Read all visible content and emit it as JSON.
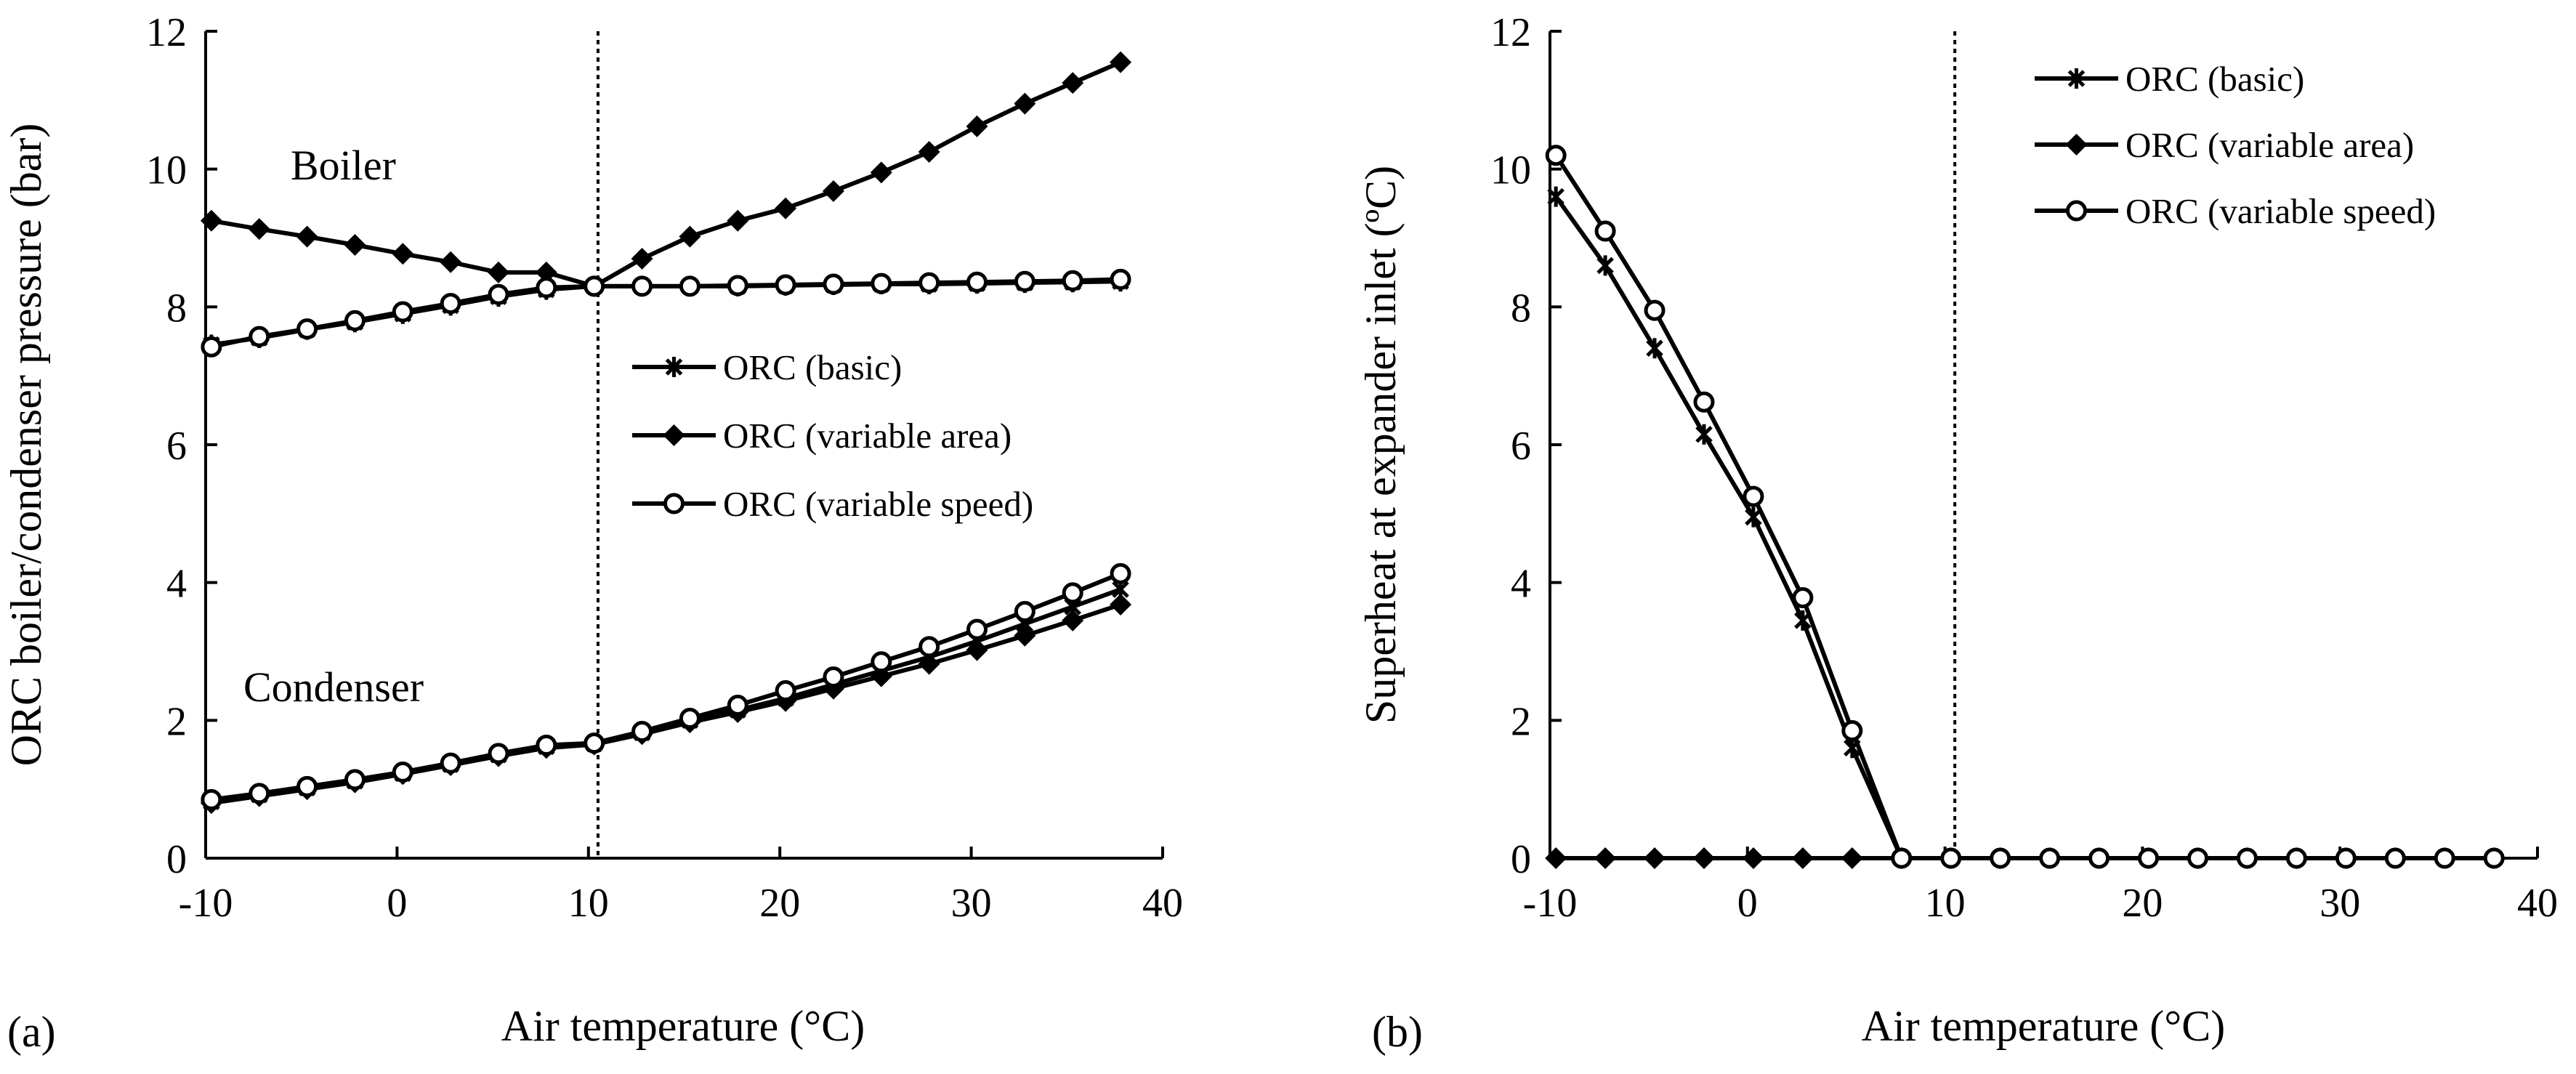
{
  "chart_data": [
    {
      "type": "line",
      "panel_label": "(a)",
      "xlabel": "Air temperature (°C)",
      "ylabel": "ORC boiler/condenser pressure (bar)",
      "xlim": [
        -10,
        40
      ],
      "ylim": [
        0,
        12
      ],
      "xticks": [
        "-10",
        "0",
        "10",
        "20",
        "30",
        "40"
      ],
      "yticks": [
        "0",
        "2",
        "4",
        "6",
        "8",
        "10",
        "12"
      ],
      "vline_x": 10.5,
      "legend_position": "center-right",
      "annotations": [
        "Boiler",
        "Condenser"
      ],
      "x": [
        -9.7,
        -7.2,
        -4.7,
        -2.2,
        0.3,
        2.8,
        5.3,
        7.8,
        10.3,
        12.8,
        15.3,
        17.8,
        20.3,
        22.8,
        25.3,
        27.8,
        30.3,
        32.8,
        35.3,
        37.8
      ],
      "series": [
        {
          "name": "ORC (basic)",
          "group": "boiler",
          "marker": "asterisk",
          "values": [
            7.45,
            7.55,
            7.67,
            7.78,
            7.9,
            8.02,
            8.15,
            8.25,
            8.3,
            8.3,
            8.3,
            8.3,
            8.31,
            8.32,
            8.33,
            8.33,
            8.34,
            8.35,
            8.36,
            8.37
          ]
        },
        {
          "name": "ORC (variable area)",
          "group": "boiler",
          "marker": "diamond",
          "values": [
            9.25,
            9.13,
            9.02,
            8.9,
            8.77,
            8.65,
            8.5,
            8.5,
            8.3,
            8.7,
            9.02,
            9.25,
            9.43,
            9.68,
            9.95,
            10.25,
            10.62,
            10.95,
            11.25,
            11.55
          ]
        },
        {
          "name": "ORC (variable speed)",
          "group": "boiler",
          "marker": "circle",
          "values": [
            7.42,
            7.57,
            7.68,
            7.8,
            7.93,
            8.05,
            8.18,
            8.28,
            8.3,
            8.3,
            8.3,
            8.31,
            8.32,
            8.33,
            8.34,
            8.35,
            8.36,
            8.37,
            8.38,
            8.4
          ]
        },
        {
          "name": "ORC (basic)",
          "group": "condenser",
          "marker": "asterisk",
          "values": [
            0.82,
            0.92,
            1.02,
            1.12,
            1.23,
            1.36,
            1.5,
            1.62,
            1.66,
            1.82,
            2.0,
            2.15,
            2.32,
            2.52,
            2.72,
            2.92,
            3.15,
            3.4,
            3.65,
            3.9
          ]
        },
        {
          "name": "ORC (variable area)",
          "group": "condenser",
          "marker": "diamond",
          "values": [
            0.8,
            0.9,
            1.0,
            1.1,
            1.22,
            1.35,
            1.48,
            1.6,
            1.65,
            1.8,
            1.97,
            2.12,
            2.28,
            2.46,
            2.64,
            2.82,
            3.02,
            3.23,
            3.45,
            3.68
          ]
        },
        {
          "name": "ORC (variable speed)",
          "group": "condenser",
          "marker": "circle",
          "values": [
            0.85,
            0.94,
            1.04,
            1.14,
            1.25,
            1.38,
            1.52,
            1.64,
            1.67,
            1.84,
            2.03,
            2.22,
            2.43,
            2.63,
            2.85,
            3.07,
            3.32,
            3.58,
            3.85,
            4.13
          ]
        }
      ],
      "legend": [
        "ORC (basic)",
        "ORC (variable area)",
        "ORC (variable speed)"
      ]
    },
    {
      "type": "line",
      "panel_label": "(b)",
      "xlabel": "Air temperature (°C)",
      "ylabel": "Superheat at expander inlet (ºC)",
      "xlim": [
        -10,
        40
      ],
      "ylim": [
        0,
        12
      ],
      "xticks": [
        "-10",
        "0",
        "10",
        "20",
        "30",
        "40"
      ],
      "yticks": [
        "0",
        "2",
        "4",
        "6",
        "8",
        "10",
        "12"
      ],
      "vline_x": 10.5,
      "legend_position": "top-right",
      "x": [
        -9.7,
        -7.2,
        -4.7,
        -2.2,
        0.3,
        2.8,
        5.3,
        7.8,
        10.3,
        12.8,
        15.3,
        17.8,
        20.3,
        22.8,
        25.3,
        27.8,
        30.3,
        32.8,
        35.3,
        37.8
      ],
      "series": [
        {
          "name": "ORC (basic)",
          "marker": "asterisk",
          "values": [
            9.6,
            8.6,
            7.4,
            6.15,
            4.95,
            3.45,
            1.6,
            0,
            0,
            0,
            0,
            0,
            0,
            0,
            0,
            0,
            0,
            0,
            0,
            0
          ]
        },
        {
          "name": "ORC (variable area)",
          "marker": "diamond",
          "values": [
            0,
            0,
            0,
            0,
            0,
            0,
            0,
            0,
            0,
            0,
            0,
            0,
            0,
            0,
            0,
            0,
            0,
            0,
            0,
            0
          ]
        },
        {
          "name": "ORC (variable speed)",
          "marker": "circle",
          "values": [
            10.2,
            9.1,
            7.95,
            6.62,
            5.25,
            3.78,
            1.85,
            0,
            0,
            0,
            0,
            0,
            0,
            0,
            0,
            0,
            0,
            0,
            0,
            0
          ]
        }
      ],
      "legend": [
        "ORC (basic)",
        "ORC (variable area)",
        "ORC (variable speed)"
      ]
    }
  ]
}
